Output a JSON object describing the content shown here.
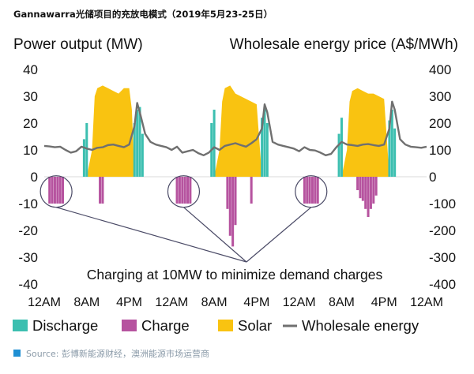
{
  "title": "Gannawarra光储项目的充放电模式（2019年5月23-25日）",
  "source": "Source: 彭博新能源财经，澳洲能源市场运营商",
  "annotation": "Charging at 10MW to minimize demand charges",
  "colors": {
    "discharge": "#3cbfb0",
    "charge": "#b6539f",
    "solar": "#f9c311",
    "wholesale": "#707070",
    "callout": "#4a4a66",
    "source_marker": "#1f8fd3"
  },
  "chart_data": {
    "type": "area",
    "xlabel": "",
    "x_ticks": [
      "12AM",
      "8AM",
      "4PM",
      "12AM",
      "8AM",
      "4PM",
      "12AM",
      "8AM",
      "4PM",
      "12AM"
    ],
    "x_range_hours": [
      0,
      72
    ],
    "y_left": {
      "label": "Power output (MW)",
      "range": [
        -40,
        40
      ],
      "ticks": [
        40,
        30,
        20,
        10,
        0,
        -10,
        -20,
        -30,
        -40
      ]
    },
    "y_right": {
      "label": "Wholesale energy price (A$/MWh)",
      "range": [
        -400,
        400
      ],
      "ticks": [
        400,
        300,
        200,
        100,
        0,
        -100,
        -200,
        -300,
        -400
      ]
    },
    "legend": [
      "Discharge",
      "Charge",
      "Solar",
      "Wholesale energy"
    ],
    "legend_position": "bottom",
    "series": [
      {
        "name": "Solar",
        "kind": "area",
        "days": [
          {
            "x": [
              8,
              9,
              9.5,
              10,
              11,
              12,
              13,
              14,
              15,
              16,
              16.5,
              17
            ],
            "y": [
              0,
              10,
              30,
              33,
              34,
              33,
              32,
              31,
              33,
              33,
              25,
              0
            ]
          },
          {
            "x": [
              32,
              33,
              33.5,
              34,
              35,
              36,
              37,
              38,
              39,
              40,
              41
            ],
            "y": [
              0,
              10,
              28,
              33,
              34,
              31,
              30,
              29,
              28,
              27,
              0
            ]
          },
          {
            "x": [
              56,
              57,
              57.5,
              58,
              59,
              60,
              61,
              62,
              63,
              64,
              65
            ],
            "y": [
              0,
              10,
              28,
              32,
              33,
              32,
              31,
              31,
              30,
              29,
              0
            ]
          }
        ]
      },
      {
        "name": "Discharge",
        "kind": "bars",
        "points": [
          {
            "x": 7.5,
            "y": 14
          },
          {
            "x": 8,
            "y": 20
          },
          {
            "x": 17,
            "y": 20
          },
          {
            "x": 17.5,
            "y": 25
          },
          {
            "x": 18,
            "y": 26
          },
          {
            "x": 18.5,
            "y": 16
          },
          {
            "x": 31.5,
            "y": 20
          },
          {
            "x": 32,
            "y": 25
          },
          {
            "x": 41,
            "y": 22
          },
          {
            "x": 41.5,
            "y": 26
          },
          {
            "x": 42,
            "y": 20
          },
          {
            "x": 55.5,
            "y": 16
          },
          {
            "x": 56,
            "y": 22
          },
          {
            "x": 65,
            "y": 21
          },
          {
            "x": 65.5,
            "y": 25
          },
          {
            "x": 66,
            "y": 18
          }
        ]
      },
      {
        "name": "Charge",
        "kind": "bars",
        "points": [
          {
            "x": 1,
            "y": -10
          },
          {
            "x": 1.5,
            "y": -10
          },
          {
            "x": 2,
            "y": -10
          },
          {
            "x": 2.5,
            "y": -10
          },
          {
            "x": 3,
            "y": -10
          },
          {
            "x": 3.5,
            "y": -10
          },
          {
            "x": 10.5,
            "y": -10
          },
          {
            "x": 11,
            "y": -10
          },
          {
            "x": 25,
            "y": -10
          },
          {
            "x": 25.5,
            "y": -10
          },
          {
            "x": 26,
            "y": -10
          },
          {
            "x": 26.5,
            "y": -10
          },
          {
            "x": 27,
            "y": -10
          },
          {
            "x": 27.5,
            "y": -10
          },
          {
            "x": 34.5,
            "y": -12
          },
          {
            "x": 35,
            "y": -22
          },
          {
            "x": 35.5,
            "y": -26
          },
          {
            "x": 36,
            "y": -18
          },
          {
            "x": 39,
            "y": -10
          },
          {
            "x": 49,
            "y": -10
          },
          {
            "x": 49.5,
            "y": -10
          },
          {
            "x": 50,
            "y": -10
          },
          {
            "x": 50.5,
            "y": -10
          },
          {
            "x": 51,
            "y": -10
          },
          {
            "x": 51.5,
            "y": -10
          },
          {
            "x": 59,
            "y": -5
          },
          {
            "x": 59.5,
            "y": -8
          },
          {
            "x": 60,
            "y": -9
          },
          {
            "x": 60.5,
            "y": -12
          },
          {
            "x": 61,
            "y": -15
          },
          {
            "x": 61.5,
            "y": -12
          },
          {
            "x": 62,
            "y": -10
          },
          {
            "x": 62.5,
            "y": -7
          }
        ]
      },
      {
        "name": "Wholesale energy",
        "kind": "line",
        "axis": "right",
        "x": [
          0,
          1,
          2,
          3,
          4,
          5,
          6,
          7,
          8,
          9,
          10,
          11,
          12,
          13,
          14,
          15,
          16,
          17,
          17.5,
          18,
          19,
          20,
          21,
          22,
          23,
          24,
          25,
          26,
          27,
          28,
          29,
          30,
          31,
          32,
          33,
          34,
          35,
          36,
          37,
          38,
          39,
          40,
          41,
          41.5,
          42,
          43,
          44,
          45,
          46,
          47,
          48,
          49,
          50,
          51,
          52,
          53,
          54,
          55,
          56,
          57,
          58,
          59,
          60,
          61,
          62,
          63,
          64,
          65,
          65.5,
          66,
          67,
          68,
          69,
          70,
          71,
          72
        ],
        "y": [
          115,
          113,
          110,
          112,
          100,
          90,
          95,
          112,
          105,
          100,
          108,
          110,
          118,
          120,
          115,
          110,
          120,
          190,
          275,
          240,
          160,
          130,
          120,
          115,
          110,
          100,
          112,
          90,
          95,
          100,
          88,
          80,
          90,
          110,
          100,
          115,
          120,
          125,
          118,
          112,
          125,
          140,
          180,
          270,
          240,
          130,
          120,
          115,
          110,
          105,
          95,
          110,
          100,
          98,
          90,
          80,
          85,
          110,
          130,
          120,
          118,
          115,
          120,
          122,
          118,
          115,
          120,
          180,
          280,
          250,
          140,
          120,
          112,
          110,
          108,
          112
        ]
      }
    ]
  }
}
